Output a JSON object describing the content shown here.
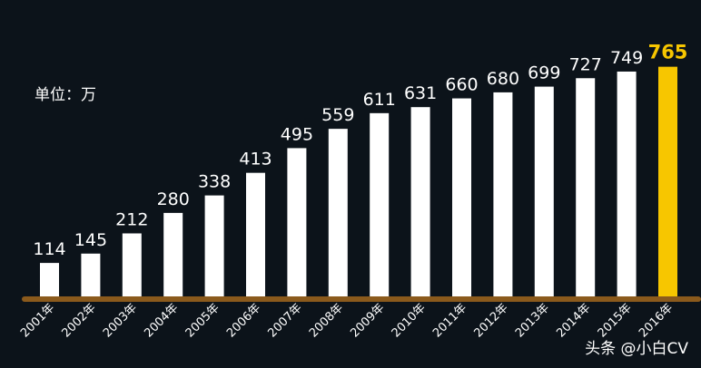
{
  "unit_label": "单位：万",
  "credit": "头条 @小白CV",
  "chart_data": {
    "type": "bar",
    "categories": [
      "2001年",
      "2002年",
      "2003年",
      "2004年",
      "2005年",
      "2006年",
      "2007年",
      "2008年",
      "2009年",
      "2010年",
      "2011年",
      "2012年",
      "2013年",
      "2014年",
      "2015年",
      "2016年"
    ],
    "values": [
      114,
      145,
      212,
      280,
      338,
      413,
      495,
      559,
      611,
      631,
      660,
      680,
      699,
      727,
      749,
      765
    ],
    "ylim": [
      0,
      800
    ],
    "grid": false,
    "highlight_index": 15,
    "colors": {
      "background": "#0c131a",
      "bar": "#ffffff",
      "highlight_bar": "#f7c600",
      "highlight_label": "#f7c600",
      "baseline": "#8b5a1c",
      "text": "#ffffff"
    }
  }
}
